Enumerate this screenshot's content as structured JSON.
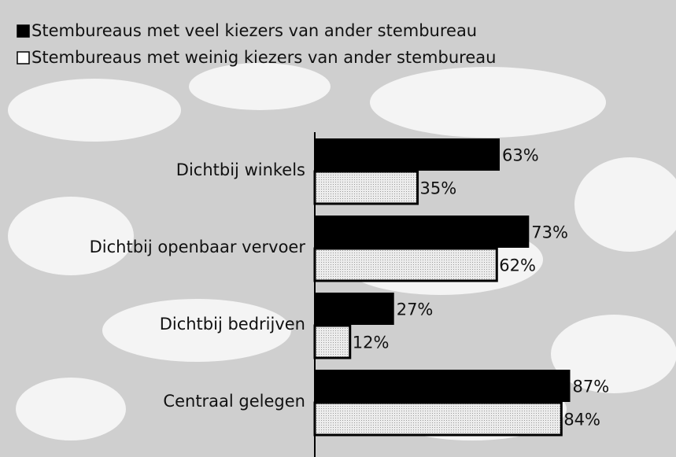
{
  "chart_data": {
    "type": "barh",
    "categories": [
      "Dichtbij winkels",
      "Dichtbij openbaar vervoer",
      "Dichtbij bedrijven",
      "Centraal gelegen"
    ],
    "series": [
      {
        "name": "Stembureaus met veel kiezers van ander stembureau",
        "color": "#000000",
        "values": [
          63,
          73,
          27,
          87
        ],
        "value_labels": [
          "63%",
          "73%",
          "27%",
          "87%"
        ]
      },
      {
        "name": "Stembureaus met weinig kiezers van ander stembureau",
        "color": "#e0e0e0",
        "values": [
          35,
          62,
          12,
          84
        ],
        "value_labels": [
          "35%",
          "62%",
          "12%",
          "84%"
        ]
      }
    ],
    "xlim": [
      0,
      100
    ],
    "legend": "top-left"
  }
}
